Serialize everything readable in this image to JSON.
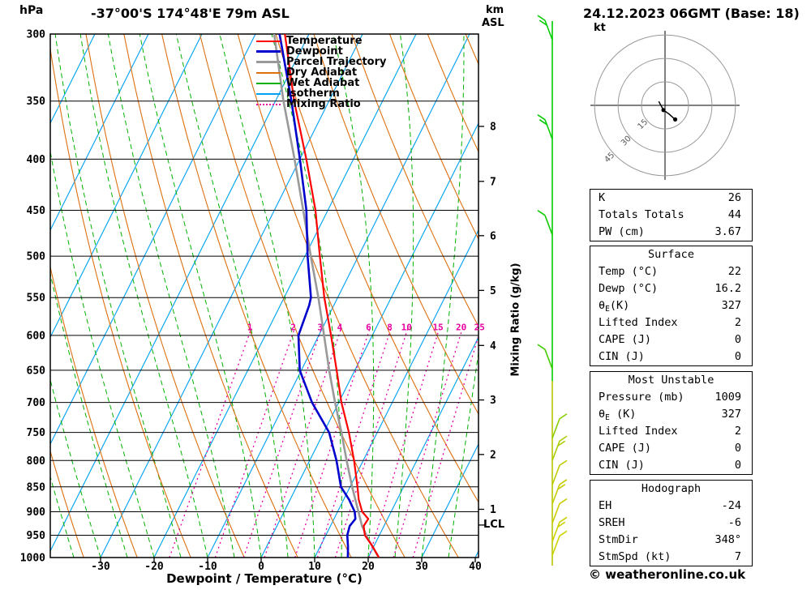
{
  "header": {
    "hpa": "hPa",
    "title": "-37°00'S 174°48'E 79m ASL",
    "km": "km",
    "asl": "ASL",
    "date": "24.12.2023 06GMT (Base: 18)"
  },
  "legend": {
    "items": [
      {
        "label": "Temperature",
        "color": "#ff0000",
        "style": "solid",
        "weight": 2
      },
      {
        "label": "Dewpoint",
        "color": "#0000cc",
        "style": "solid",
        "weight": 3
      },
      {
        "label": "Parcel Trajectory",
        "color": "#999999",
        "style": "solid",
        "weight": 3
      },
      {
        "label": "Dry Adiabat",
        "color": "#dd7010",
        "style": "solid",
        "weight": 2
      },
      {
        "label": "Wet Adiabat",
        "color": "#00b000",
        "style": "solid",
        "weight": 2
      },
      {
        "label": "Isotherm",
        "color": "#00a0f0",
        "style": "solid",
        "weight": 2
      },
      {
        "label": "Mixing Ratio",
        "color": "#e800a0",
        "style": "dotted",
        "weight": 2
      }
    ]
  },
  "axes": {
    "pressure_ticks": [
      300,
      350,
      400,
      450,
      500,
      550,
      600,
      650,
      700,
      750,
      800,
      850,
      900,
      950,
      1000
    ],
    "temp_ticks": [
      -30,
      -20,
      -10,
      0,
      10,
      20,
      30,
      40
    ],
    "xlabel": "Dewpoint / Temperature (°C)",
    "right_axis_label": "Mixing Ratio (g/kg)",
    "km_levels": [
      {
        "km": 8,
        "p": 371
      },
      {
        "km": 7,
        "p": 421
      },
      {
        "km": 6,
        "p": 477
      },
      {
        "km": 5,
        "p": 541
      },
      {
        "km": 4,
        "p": 614
      },
      {
        "km": 3,
        "p": 696
      },
      {
        "km": 2,
        "p": 789
      },
      {
        "km": 1,
        "p": 895
      }
    ],
    "lcl": {
      "label": "LCL",
      "p": 928
    }
  },
  "chart_data": {
    "type": "skew-t-log-p-sounding",
    "pressure_range_hpa": [
      300,
      1000
    ],
    "temp_axis_range_c": [
      -40,
      40
    ],
    "isotherm_interval_c": 10,
    "dry_adiabat_interval_k": 10,
    "wet_adiabat_interval_c": 5,
    "mixing_ratio_lines_g_kg": [
      1,
      2,
      3,
      4,
      6,
      8,
      10,
      15,
      20,
      25
    ],
    "km_asl_ticks": [
      1,
      2,
      3,
      4,
      5,
      6,
      7,
      8
    ],
    "lcl_hpa": 928,
    "temperature_profile_p_c": [
      [
        1000,
        22
      ],
      [
        975,
        19.8
      ],
      [
        950,
        17.3
      ],
      [
        930,
        16.2
      ],
      [
        915,
        16.4
      ],
      [
        900,
        14.6
      ],
      [
        875,
        12.8
      ],
      [
        850,
        11.4
      ],
      [
        800,
        8.3
      ],
      [
        750,
        4.7
      ],
      [
        700,
        0.5
      ],
      [
        650,
        -3.4
      ],
      [
        600,
        -7.7
      ],
      [
        550,
        -12.5
      ],
      [
        500,
        -17.2
      ],
      [
        450,
        -22.3
      ],
      [
        400,
        -28.8
      ],
      [
        350,
        -36.5
      ],
      [
        300,
        -44.5
      ]
    ],
    "dewpoint_profile_p_c": [
      [
        1000,
        16.2
      ],
      [
        975,
        15.2
      ],
      [
        950,
        14
      ],
      [
        930,
        13.6
      ],
      [
        915,
        14
      ],
      [
        900,
        13.2
      ],
      [
        875,
        11
      ],
      [
        850,
        8.3
      ],
      [
        800,
        5
      ],
      [
        750,
        1
      ],
      [
        700,
        -5
      ],
      [
        650,
        -10.3
      ],
      [
        600,
        -13.8
      ],
      [
        560,
        -14.6
      ],
      [
        550,
        -15
      ],
      [
        500,
        -19.5
      ],
      [
        450,
        -24
      ],
      [
        400,
        -30
      ],
      [
        350,
        -37
      ],
      [
        300,
        -45.5
      ]
    ],
    "parcel_profile_p_c": [
      [
        1000,
        22
      ],
      [
        960,
        18.4
      ],
      [
        930,
        15.9
      ],
      [
        900,
        13.9
      ],
      [
        850,
        10.4
      ],
      [
        800,
        6.9
      ],
      [
        750,
        3.3
      ],
      [
        700,
        -0.7
      ],
      [
        650,
        -4.8
      ],
      [
        600,
        -9
      ],
      [
        550,
        -13.6
      ],
      [
        500,
        -18.9
      ],
      [
        450,
        -24.6
      ],
      [
        400,
        -31
      ],
      [
        350,
        -38.5
      ],
      [
        300,
        -46.5
      ]
    ]
  },
  "hodograph": {
    "unit_label": "kt",
    "rings_kt": [
      15,
      30,
      45
    ],
    "trace_uv_kt": [
      [
        -4,
        2.5
      ],
      [
        -1,
        -3
      ],
      [
        2.5,
        -5.5
      ],
      [
        6.5,
        -9
      ]
    ],
    "dots_uv_kt": [
      [
        -1,
        -3
      ],
      [
        6.5,
        -9
      ]
    ]
  },
  "wind_barbs": {
    "levels": [
      {
        "p": 304,
        "color": "#00cc00",
        "dir": -1,
        "feathers": 2
      },
      {
        "p": 382,
        "color": "#00cc00",
        "dir": -1,
        "feathers": 2
      },
      {
        "p": 476,
        "color": "#11cc00",
        "dir": -1,
        "feathers": 1
      },
      {
        "p": 648,
        "color": "#44cc00",
        "dir": -1,
        "feathers": 1
      },
      {
        "p": 760,
        "color": "#88cc00",
        "dir": 1,
        "feathers": 1
      },
      {
        "p": 800,
        "color": "#aacc00",
        "dir": 1,
        "feathers": 2
      },
      {
        "p": 846,
        "color": "#bbcc00",
        "dir": 1,
        "feathers": 1
      },
      {
        "p": 884,
        "color": "#c4cc00",
        "dir": 1,
        "feathers": 2
      },
      {
        "p": 924,
        "color": "#cccc00",
        "dir": 1,
        "feathers": 1
      },
      {
        "p": 964,
        "color": "#ccd000",
        "dir": 1,
        "feathers": 2
      },
      {
        "p": 995,
        "color": "#ccd400",
        "dir": 1,
        "feathers": 1
      }
    ]
  },
  "tables": [
    {
      "title": null,
      "rows": [
        {
          "l": "K",
          "v": "26"
        },
        {
          "l": "Totals Totals",
          "v": "44"
        },
        {
          "l": "PW (cm)",
          "v": "3.67"
        }
      ]
    },
    {
      "title": "Surface",
      "rows": [
        {
          "l": "Temp (°C)",
          "v": "22"
        },
        {
          "l": "Dewp (°C)",
          "v": "16.2"
        },
        {
          "l": "θ_E_(K)",
          "v": "327"
        },
        {
          "l": "Lifted Index",
          "v": "2"
        },
        {
          "l": "CAPE (J)",
          "v": "0"
        },
        {
          "l": "CIN (J)",
          "v": "0"
        }
      ]
    },
    {
      "title": "Most Unstable",
      "rows": [
        {
          "l": "Pressure (mb)",
          "v": "1009"
        },
        {
          "l": "θ_E_ (K)",
          "v": "327"
        },
        {
          "l": "Lifted Index",
          "v": "2"
        },
        {
          "l": "CAPE (J)",
          "v": "0"
        },
        {
          "l": "CIN (J)",
          "v": "0"
        }
      ]
    },
    {
      "title": "Hodograph",
      "rows": [
        {
          "l": "EH",
          "v": "-24"
        },
        {
          "l": "SREH",
          "v": "-6"
        },
        {
          "l": "StmDir",
          "v": "348°"
        },
        {
          "l": "StmSpd (kt)",
          "v": "7"
        }
      ]
    }
  ],
  "copyright": "© weatheronline.co.uk",
  "colors": {
    "isotherm": "#00a0f0",
    "dry_adiabat": "#dd7010",
    "wet_adiabat": "#00b000",
    "mixing_ratio": "#e800a0",
    "temperature": "#ff0000",
    "dewpoint": "#0000cc",
    "parcel": "#999999",
    "isobar": "#000000",
    "barb_green": "#00cc00",
    "barb_yellow": "#b6c400"
  }
}
